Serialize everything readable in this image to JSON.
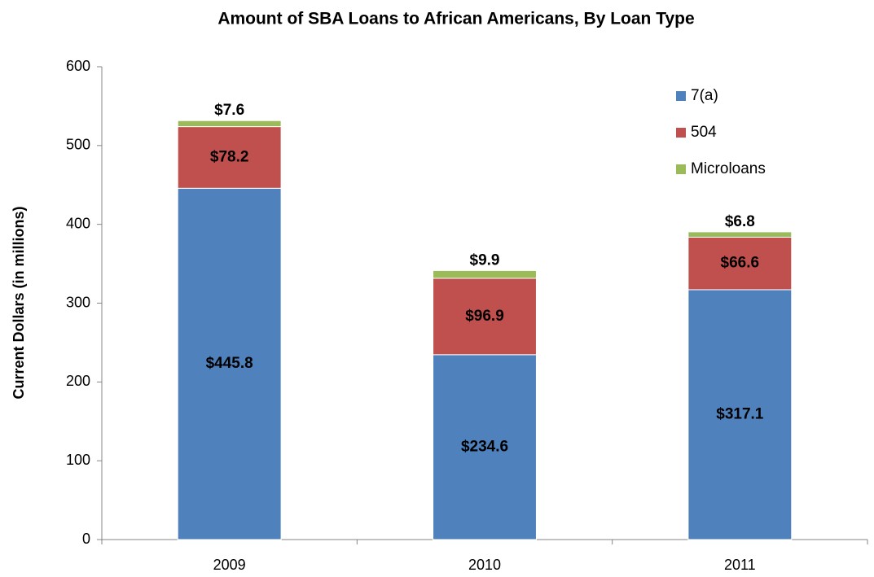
{
  "chart_data": {
    "type": "stacked_bar",
    "title": "Amount of SBA Loans to African Americans, By Loan Type",
    "ylabel": "Current Dollars (in millions)",
    "categories": [
      "2009",
      "2010",
      "2011"
    ],
    "series": [
      {
        "name": "7(a)",
        "color": "#4f81bd",
        "values": [
          445.8,
          234.6,
          317.1
        ],
        "value_labels": [
          "$445.8",
          "$234.6",
          "$317.1"
        ]
      },
      {
        "name": "504",
        "color": "#c0504d",
        "values": [
          78.2,
          96.9,
          66.6
        ],
        "value_labels": [
          "$78.2",
          "$96.9",
          "$66.6"
        ]
      },
      {
        "name": "Microloans",
        "color": "#9bbb59",
        "values": [
          7.6,
          9.9,
          6.8
        ],
        "value_labels": [
          "$7.6",
          "$9.9",
          "$6.8"
        ]
      }
    ],
    "ylim": [
      0,
      600
    ],
    "yticks": [
      0,
      100,
      200,
      300,
      400,
      500,
      600
    ],
    "grid": false,
    "legend": "upper right"
  }
}
